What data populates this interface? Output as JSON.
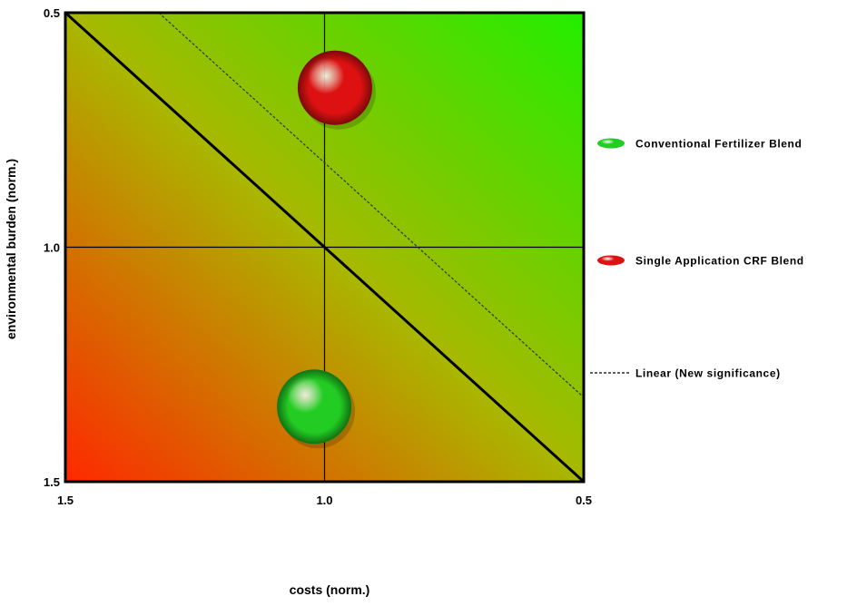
{
  "chart_data": {
    "type": "scatter",
    "title": "",
    "xlabel": "costs (norm.)",
    "ylabel": "environmental burden (norm.)",
    "xlim": [
      1.5,
      0.5
    ],
    "ylim": [
      1.5,
      0.5
    ],
    "x_reversed": true,
    "y_reversed": true,
    "x_ticks": [
      1.5,
      1.0,
      0.5
    ],
    "y_ticks": [
      0.5,
      1.0,
      1.5
    ],
    "x_tick_labels": [
      "1.5",
      "1.0",
      "0.5"
    ],
    "y_tick_labels": [
      "0.5",
      "1.0",
      "1.5"
    ],
    "grid": false,
    "background_gradient": {
      "top_right": "#22ee00",
      "middle": "#a8b800",
      "bottom_left": "#ff2800"
    },
    "reference_lines": [
      {
        "name": "",
        "x": [
          1.5,
          0.5
        ],
        "y": [
          0.5,
          1.5
        ],
        "color": "#000000",
        "style": "solid"
      },
      {
        "name": "",
        "x": [
          1.0,
          1.0
        ],
        "y": [
          0.5,
          1.5
        ],
        "color": "#000000",
        "style": "solid"
      },
      {
        "name": "",
        "x": [
          1.5,
          0.5
        ],
        "y": [
          1.0,
          1.0
        ],
        "color": "#000000",
        "style": "solid"
      }
    ],
    "series": [
      {
        "name": "Conventional Fertilizer Blend",
        "x": [
          1.02
        ],
        "y": [
          1.34
        ],
        "color": "#22cc22",
        "marker": "sphere"
      },
      {
        "name": "Single Application CRF Blend",
        "x": [
          0.98
        ],
        "y": [
          0.66
        ],
        "color": "#dd1111",
        "marker": "sphere"
      },
      {
        "name": "Linear (New significance)",
        "type": "line",
        "x": [
          1.32,
          0.5
        ],
        "y": [
          0.5,
          1.32
        ],
        "color": "#333333",
        "style": "dashed"
      }
    ],
    "legend": "right"
  }
}
